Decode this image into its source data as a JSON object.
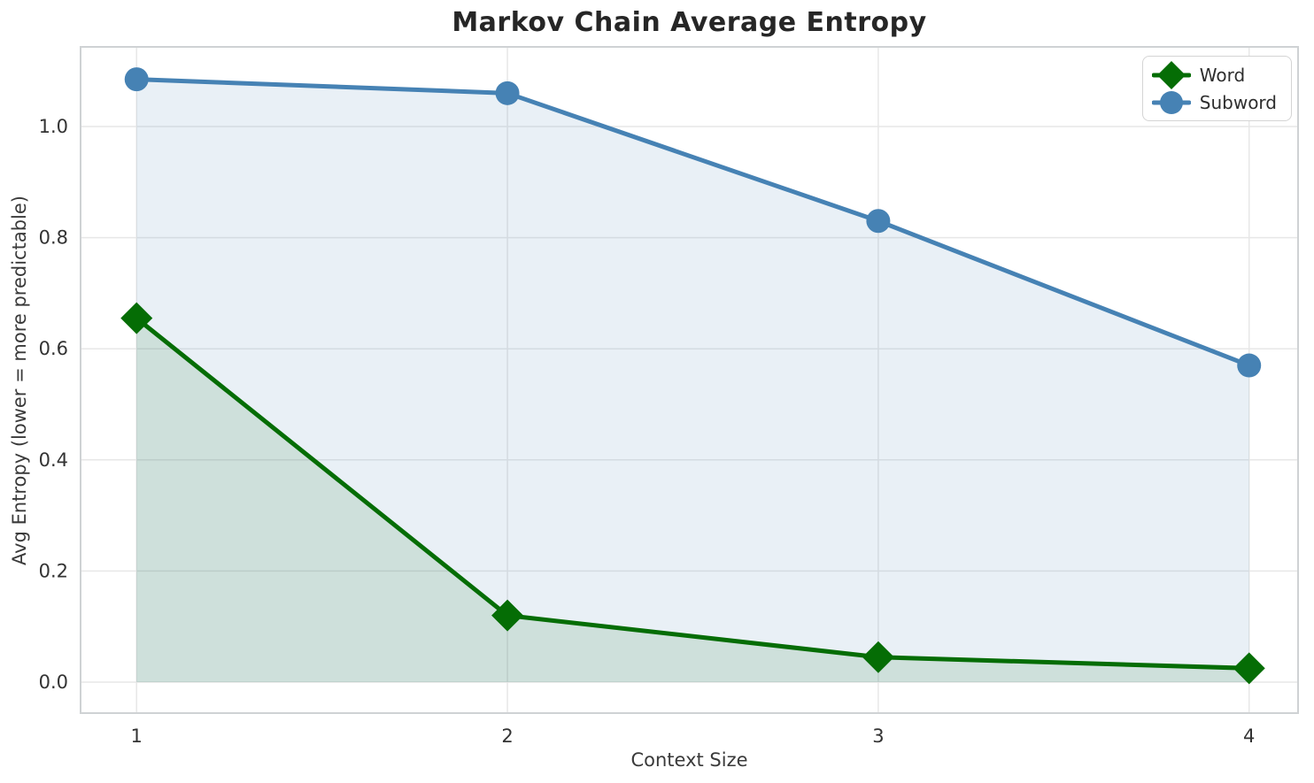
{
  "chart_data": {
    "type": "line",
    "title": "Markov Chain Average Entropy",
    "xlabel": "Context Size",
    "ylabel": "Avg Entropy (lower = more predictable)",
    "x": [
      1,
      2,
      3,
      4
    ],
    "series": [
      {
        "name": "Word",
        "values": [
          0.655,
          0.12,
          0.045,
          0.025
        ],
        "color": "#056d05",
        "marker": "diamond"
      },
      {
        "name": "Subword",
        "values": [
          1.085,
          1.06,
          0.83,
          0.57
        ],
        "color": "#4682b4",
        "marker": "circle"
      }
    ],
    "xticks": [
      1,
      2,
      3,
      4
    ],
    "xtick_labels": [
      "1",
      "2",
      "3",
      "4"
    ],
    "yticks": [
      0.0,
      0.2,
      0.4,
      0.6,
      0.8,
      1.0
    ],
    "ytick_labels": [
      "0.0",
      "0.2",
      "0.4",
      "0.6",
      "0.8",
      "1.0"
    ],
    "xlim": [
      0.849,
      4.132
    ],
    "ylim": [
      -0.0557,
      1.1433
    ],
    "grid": true,
    "fill_to_y": 0,
    "fill_alpha": 0.12,
    "legend_position": "upper right",
    "colors": {
      "grid": "#e7e7e7",
      "spine": "#cfd2d4",
      "tick_text": "#333333",
      "title_text": "#262626"
    }
  }
}
